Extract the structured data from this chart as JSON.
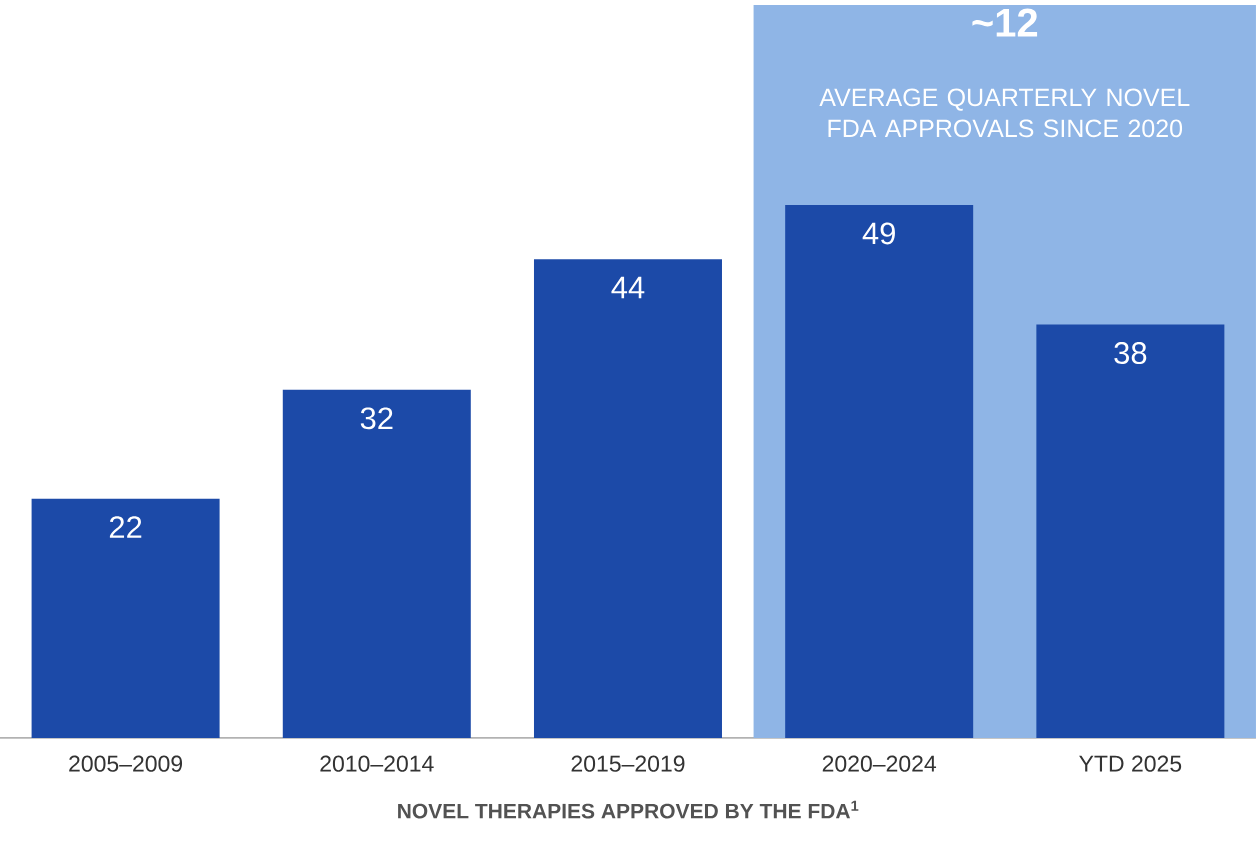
{
  "chart_data": {
    "type": "bar",
    "categories": [
      "2005–2009",
      "2010–2014",
      "2015–2019",
      "2020–2024",
      "YTD 2025"
    ],
    "values": [
      22,
      32,
      44,
      49,
      38
    ],
    "color": "#1c4aa8",
    "data_labels": true,
    "xlabel": "NOVEL THERAPIES APPROVED BY THE FDA$^{1}$",
    "bands": [
      {
        "axis": "x",
        "from": "2020–2024",
        "to": "YTD 2025",
        "label": "~12",
        "color": "#8fb5e6"
      }
    ],
    "annotations": [
      "AVERAGE QUARTERLY NOVEL FDA APPROVALS SINCE 2020"
    ]
  }
}
